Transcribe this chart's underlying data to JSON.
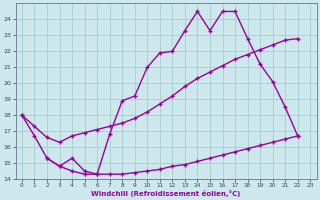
{
  "xlabel": "Windchill (Refroidissement éolien,°C)",
  "background_color": "#cce8ec",
  "grid_color": "#aacccc",
  "line_color": "#990099",
  "xlim": [
    -0.5,
    23.5
  ],
  "ylim": [
    14,
    25
  ],
  "yticks": [
    14,
    15,
    16,
    17,
    18,
    19,
    20,
    21,
    22,
    23,
    24
  ],
  "xticks": [
    0,
    1,
    2,
    3,
    4,
    5,
    6,
    7,
    8,
    9,
    10,
    11,
    12,
    13,
    14,
    15,
    16,
    17,
    18,
    19,
    20,
    21,
    22,
    23
  ],
  "line1_x": [
    0,
    1,
    2,
    3,
    4,
    5,
    6,
    7,
    8,
    9,
    10,
    11,
    12,
    13,
    14,
    15,
    16,
    17,
    18,
    19,
    20,
    21,
    22
  ],
  "line1_y": [
    18.0,
    16.7,
    15.3,
    14.8,
    15.3,
    14.5,
    14.3,
    16.8,
    18.9,
    19.2,
    21.0,
    21.9,
    22.0,
    23.3,
    24.5,
    23.3,
    24.5,
    24.5,
    22.8,
    21.2,
    20.1,
    18.5,
    16.7
  ],
  "line2_x": [
    0,
    1,
    2,
    3,
    4,
    5,
    6,
    7,
    8,
    9,
    10,
    11,
    12,
    13,
    14,
    15,
    16,
    17,
    18,
    19,
    20,
    21,
    22
  ],
  "line2_y": [
    18.0,
    17.3,
    16.6,
    16.3,
    16.7,
    16.9,
    17.1,
    17.3,
    17.5,
    17.8,
    18.2,
    18.7,
    19.2,
    19.8,
    20.3,
    20.7,
    21.1,
    21.5,
    21.8,
    22.1,
    22.4,
    22.7,
    22.8
  ],
  "line3_x": [
    2,
    3,
    4,
    5,
    6,
    7,
    8,
    9,
    10,
    11,
    12,
    13,
    14,
    15,
    16,
    17,
    18,
    19,
    20,
    21,
    22
  ],
  "line3_y": [
    15.3,
    14.8,
    14.5,
    14.3,
    14.3,
    14.3,
    14.3,
    14.4,
    14.5,
    14.6,
    14.8,
    14.9,
    15.1,
    15.3,
    15.5,
    15.7,
    15.9,
    16.1,
    16.3,
    16.5,
    16.7
  ]
}
